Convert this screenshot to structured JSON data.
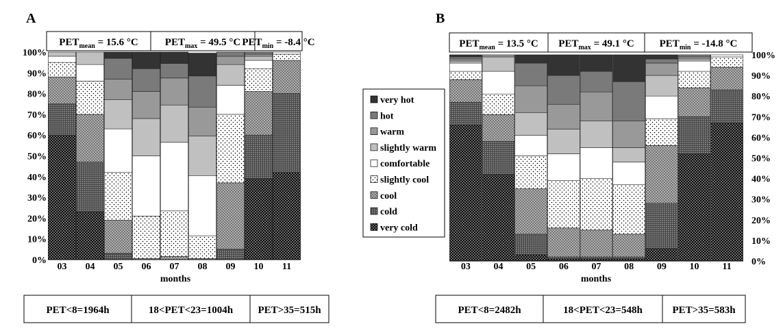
{
  "panels": [
    {
      "label": "A",
      "header_cells": [
        {
          "prefix": "PET",
          "sub": "mean",
          "suffix": " = 15.6 °C"
        },
        {
          "prefix": "PET",
          "sub": "max",
          "suffix": " = 49.5 °C"
        },
        {
          "prefix": "PET",
          "sub": "min",
          "suffix": " = -8.4 °C"
        }
      ],
      "footer_cells": [
        "PET<8=1964h",
        "18<PET<23=1004h",
        "PET>35=515h"
      ]
    },
    {
      "label": "B",
      "header_cells": [
        {
          "prefix": "PET",
          "sub": "mean",
          "suffix": " = 13.5 °C"
        },
        {
          "prefix": "PET",
          "sub": "max",
          "suffix": " = 49.1 °C"
        },
        {
          "prefix": "PET",
          "sub": "min",
          "suffix": " = -14.8 °C"
        }
      ],
      "footer_cells": [
        "PET<8=2482h",
        "18<PET<23=548h",
        "PET>35=583h"
      ]
    }
  ],
  "legend": {
    "placement": "center",
    "entries": [
      {
        "label": "very hot",
        "fill": "#333333"
      },
      {
        "label": "hot",
        "fill": "#7a7a7a"
      },
      {
        "label": "warm",
        "fill": "#999999"
      },
      {
        "label": "slightly warm",
        "fill": "#c0c0c0"
      },
      {
        "label": "comfortable",
        "fill": "#ffffff"
      },
      {
        "label": "slightly cool",
        "fill": "dots"
      },
      {
        "label": "cool",
        "fill": "cross"
      },
      {
        "label": "cold",
        "fill": "grid"
      },
      {
        "label": "very cold",
        "fill": "check"
      }
    ]
  },
  "chart_data": [
    {
      "type": "bar",
      "stacked": true,
      "title": "A",
      "xlabel": "months",
      "ylabel": "",
      "ylim": [
        0,
        100
      ],
      "yticks": [
        "0%",
        "10%",
        "20%",
        "30%",
        "40%",
        "50%",
        "60%",
        "70%",
        "80%",
        "90%",
        "100%"
      ],
      "y_axis_side": "left",
      "categories": [
        "03",
        "04",
        "05",
        "06",
        "07",
        "08",
        "09",
        "10",
        "11"
      ],
      "series": [
        {
          "name": "very cold",
          "values": [
            60,
            23,
            0,
            0,
            0,
            0,
            0,
            39,
            42
          ]
        },
        {
          "name": "cold",
          "values": [
            15,
            24,
            3,
            0,
            0,
            0,
            5,
            21,
            38
          ]
        },
        {
          "name": "cool",
          "values": [
            13,
            23,
            16,
            0.5,
            1.5,
            0.5,
            32,
            21,
            16
          ]
        },
        {
          "name": "slightly cool",
          "values": [
            7,
            16,
            23,
            20.5,
            22,
            11,
            33,
            11,
            3
          ]
        },
        {
          "name": "comfortable",
          "values": [
            3,
            8,
            21,
            29,
            33,
            29,
            14,
            4,
            1
          ]
        },
        {
          "name": "slightly warm",
          "values": [
            2,
            6,
            14,
            18,
            18,
            19,
            10,
            2,
            0
          ]
        },
        {
          "name": "warm",
          "values": [
            0,
            0,
            10,
            13,
            13,
            14,
            4,
            1,
            0
          ]
        },
        {
          "name": "hot",
          "values": [
            0,
            0,
            10,
            11,
            7,
            15,
            2,
            1,
            0
          ]
        },
        {
          "name": "very hot",
          "values": [
            0,
            0,
            3,
            8,
            5.5,
            11,
            0,
            0,
            0
          ]
        }
      ]
    },
    {
      "type": "bar",
      "stacked": true,
      "title": "B",
      "xlabel": "months",
      "ylabel": "",
      "ylim": [
        0,
        100
      ],
      "yticks": [
        "0%",
        "10%",
        "20%",
        "30%",
        "40%",
        "50%",
        "60%",
        "70%",
        "80%",
        "90%",
        "100%"
      ],
      "y_axis_side": "right",
      "categories": [
        "03",
        "04",
        "05",
        "06",
        "07",
        "08",
        "09",
        "10",
        "11"
      ],
      "series": [
        {
          "name": "very cold",
          "values": [
            66,
            42,
            3,
            1,
            1,
            1,
            6,
            52,
            67
          ]
        },
        {
          "name": "cold",
          "values": [
            11,
            16,
            10,
            1,
            1,
            1,
            22,
            18,
            16
          ]
        },
        {
          "name": "cool",
          "values": [
            11,
            13,
            22,
            14,
            13,
            11,
            28,
            14,
            11
          ]
        },
        {
          "name": "slightly cool",
          "values": [
            4,
            10,
            16,
            23,
            25,
            24,
            13,
            8,
            5
          ]
        },
        {
          "name": "comfortable",
          "values": [
            4,
            11,
            10,
            13,
            15,
            11,
            11,
            5,
            1
          ]
        },
        {
          "name": "slightly warm",
          "values": [
            1,
            7,
            11,
            12,
            13,
            7,
            10,
            1,
            0
          ]
        },
        {
          "name": "warm",
          "values": [
            1,
            1,
            13,
            12,
            14,
            13,
            6,
            1,
            0
          ]
        },
        {
          "name": "hot",
          "values": [
            1,
            0,
            11,
            14,
            10,
            19,
            2,
            1,
            0
          ]
        },
        {
          "name": "very hot",
          "values": [
            1,
            0,
            4,
            10,
            8,
            13,
            2,
            0,
            0
          ]
        }
      ]
    }
  ]
}
